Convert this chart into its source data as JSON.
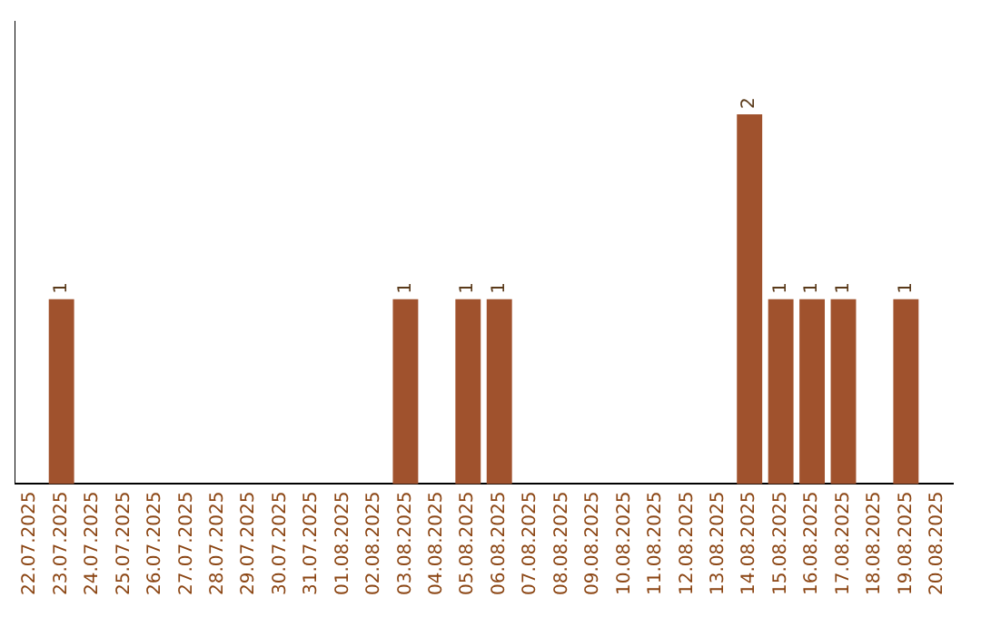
{
  "chart_data": {
    "type": "bar",
    "categories": [
      "22.07.2025",
      "23.07.2025",
      "24.07.2025",
      "25.07.2025",
      "26.07.2025",
      "27.07.2025",
      "28.07.2025",
      "29.07.2025",
      "30.07.2025",
      "31.07.2025",
      "01.08.2025",
      "02.08.2025",
      "03.08.2025",
      "04.08.2025",
      "05.08.2025",
      "06.08.2025",
      "07.08.2025",
      "08.08.2025",
      "09.08.2025",
      "10.08.2025",
      "11.08.2025",
      "12.08.2025",
      "13.08.2025",
      "14.08.2025",
      "15.08.2025",
      "16.08.2025",
      "17.08.2025",
      "18.08.2025",
      "19.08.2025",
      "20.08.2025"
    ],
    "values": [
      0,
      1,
      0,
      0,
      0,
      0,
      0,
      0,
      0,
      0,
      0,
      0,
      1,
      0,
      1,
      1,
      0,
      0,
      0,
      0,
      0,
      0,
      0,
      2,
      1,
      1,
      1,
      0,
      1,
      0
    ],
    "value_labels": [
      null,
      "1",
      null,
      null,
      null,
      null,
      null,
      null,
      null,
      null,
      null,
      null,
      "1",
      null,
      "1",
      "1",
      null,
      null,
      null,
      null,
      null,
      null,
      null,
      "2",
      "1",
      "1",
      "1",
      null,
      "1",
      null
    ],
    "color": "#a0522d",
    "grid": false,
    "legend": false
  }
}
